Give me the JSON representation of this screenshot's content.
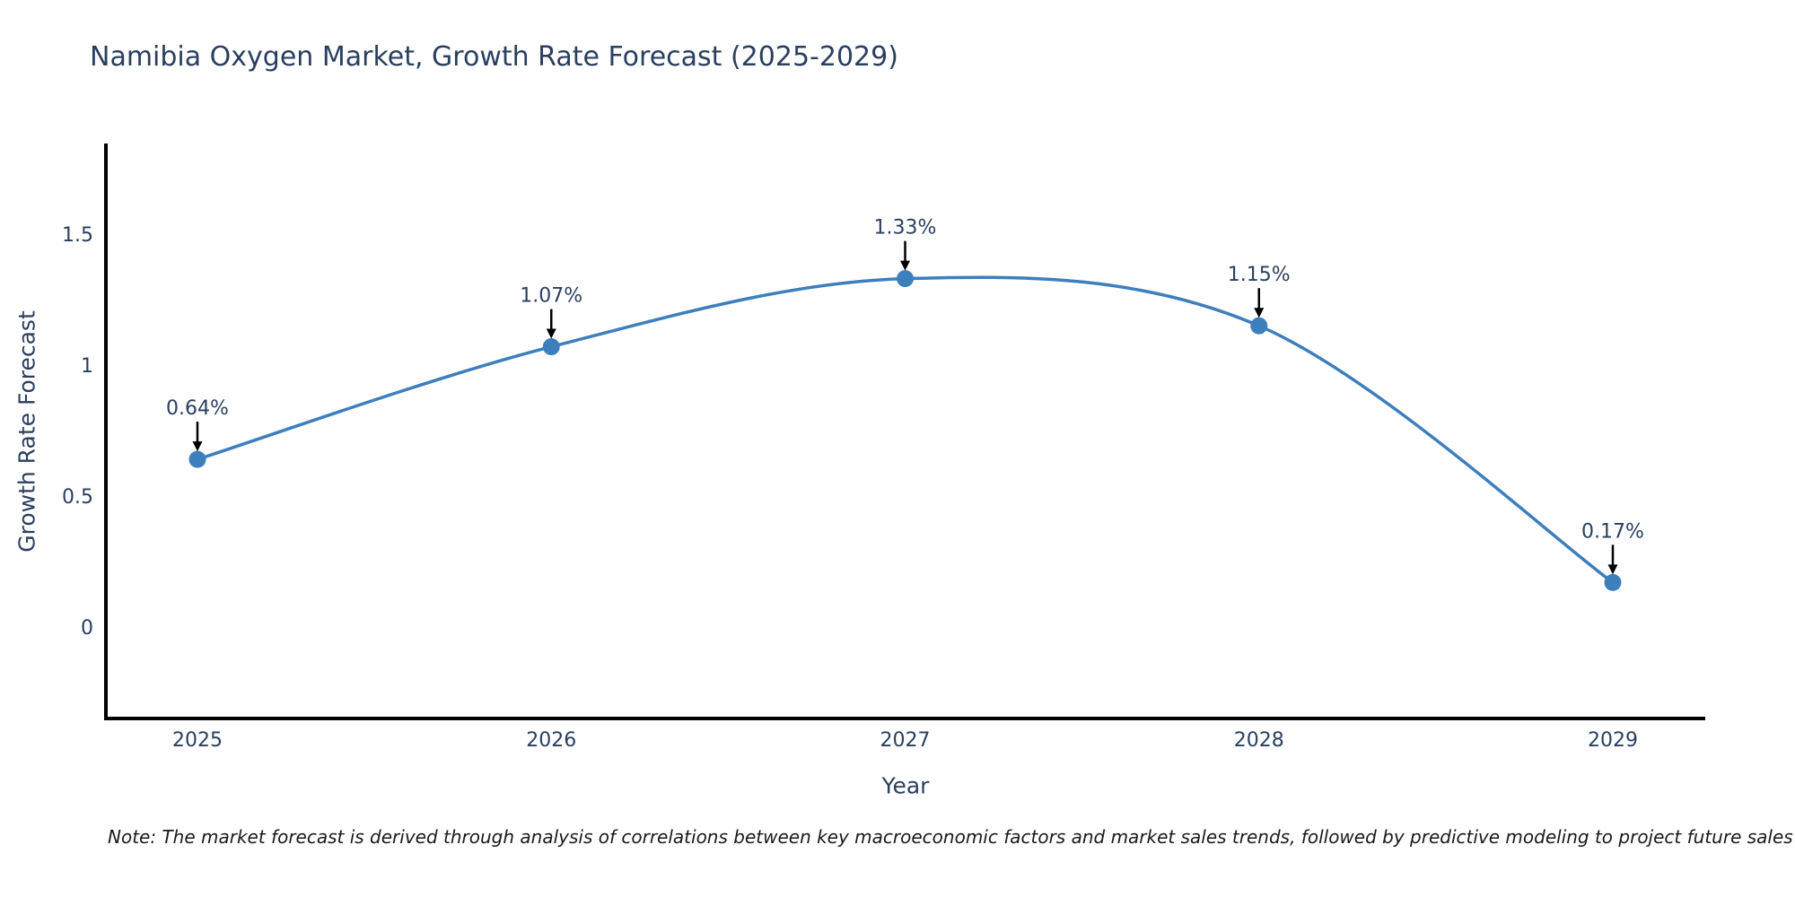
{
  "title": "Namibia Oxygen Market, Growth Rate Forecast (2025-2029)",
  "note": "Note: The market forecast is derived through analysis of correlations between key macroeconomic factors and market sales trends, followed by predictive modeling to project future sales",
  "colors": {
    "line": "#3d7ebd",
    "marker": "#3d7ebd",
    "axis": "#000000",
    "text": "#2a3f5f",
    "arrow": "#000000",
    "background": "#ffffff"
  },
  "chart_data": {
    "type": "line",
    "line_shape": "spline",
    "x": [
      2025,
      2026,
      2027,
      2028,
      2029
    ],
    "values": [
      0.64,
      1.07,
      1.33,
      1.15,
      0.17
    ],
    "point_labels": [
      "0.64%",
      "1.07%",
      "1.33%",
      "1.15%",
      "0.17%"
    ],
    "xtick_labels": [
      "2025",
      "2026",
      "2027",
      "2028",
      "2029"
    ],
    "yticks": [
      0,
      0.5,
      1,
      1.5
    ],
    "ytick_labels": [
      "0",
      "0.5",
      "1",
      "1.5"
    ],
    "title": "Namibia Oxygen Market, Growth Rate Forecast (2025-2029)",
    "xlabel": "Year",
    "ylabel": "Growth Rate Forecast",
    "xlim": [
      2024.74,
      2029.26
    ],
    "ylim": [
      -0.36,
      1.85
    ],
    "grid": false,
    "legend": false,
    "annotations_have_arrows": true
  }
}
